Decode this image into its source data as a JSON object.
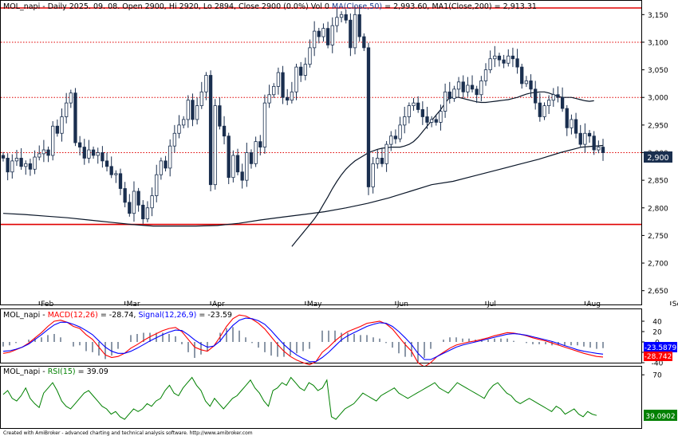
{
  "price_pane": {
    "ticker": "MOL_napi",
    "info": " - Daily 2025. 09. 08. Open 2900, Hi 2920, Lo 2894, Close 2900 (0.0%) Vol 0 ",
    "ma50_label": "MA(Close,50)",
    "ma50_value": " = 2,993.60, ",
    "ma200_label": "MA1(Close,200)",
    "ma200_value": " = 2,913.31",
    "last_price_label": "2,900"
  },
  "macd_pane": {
    "ticker": "MOL_napi - ",
    "macd_label": "MACD(12,26)",
    "macd_value": " = -28.74, ",
    "signal_label": "Signal(12,26,9)",
    "signal_value": " = -23.59",
    "signal_tag": "-23.5879",
    "macd_tag": "-28.742"
  },
  "rsi_pane": {
    "ticker": "MOL_napi - ",
    "rsi_label": "RSI(15)",
    "rsi_value": " = 39.09",
    "rsi_tag": "39.0902"
  },
  "footer": "Created with AmiBroker - advanced charting and technical analysis software. http://www.amibroker.com",
  "colors": {
    "up": "#ffffff",
    "down": "#1a2f4f",
    "ma_line": "#0a1628",
    "macd": "#ff0000",
    "signal": "#0000ff",
    "rsi": "#008000",
    "level": "#e00000",
    "tag_bg": "#1a2f4f"
  },
  "chart_data": [
    {
      "type": "candlestick",
      "ylim": [
        2625,
        3175
      ],
      "yticks": [
        2650,
        2700,
        2750,
        2800,
        2850,
        2900,
        2950,
        3000,
        3050,
        3100,
        3150
      ],
      "ytick_labels": [
        "2,650",
        "2,700",
        "2,750",
        "2,800",
        "2,850",
        "2,900",
        "2,950",
        "3,000",
        "3,050",
        "3,100",
        "3,150"
      ],
      "xtick_labels": [
        "Feb",
        "Mar",
        "Apr",
        "May",
        "Jun",
        "Jul",
        "Aug",
        "Sep"
      ],
      "xtick_index": [
        8,
        27,
        46,
        67,
        87,
        107,
        129,
        148
      ],
      "horizontal_levels_solid": [
        3162,
        2770
      ],
      "horizontal_levels_dotted": [
        3100,
        3000,
        2900
      ],
      "closes": [
        2890,
        2865,
        2885,
        2890,
        2875,
        2880,
        2870,
        2892,
        2898,
        2905,
        2895,
        2948,
        2935,
        2965,
        2990,
        3008,
        2918,
        2910,
        2890,
        2905,
        2895,
        2900,
        2885,
        2875,
        2860,
        2862,
        2835,
        2810,
        2790,
        2830,
        2805,
        2780,
        2800,
        2822,
        2860,
        2885,
        2872,
        2912,
        2935,
        2950,
        2960,
        2995,
        2960,
        2985,
        3010,
        3040,
        2842,
        2985,
        2948,
        2930,
        2855,
        2895,
        2865,
        2850,
        2900,
        2880,
        2920,
        2910,
        2990,
        3005,
        3020,
        3045,
        3000,
        2995,
        3010,
        3055,
        3040,
        3060,
        3090,
        3120,
        3110,
        3125,
        3095,
        3130,
        3145,
        3150,
        3140,
        3090,
        3150,
        3110,
        3090,
        2838,
        2880,
        2890,
        2880,
        2915,
        2930,
        2925,
        2950,
        2965,
        2985,
        2990,
        2978,
        2965,
        2955,
        2960,
        2955,
        2975,
        3010,
        2998,
        3015,
        3028,
        3010,
        3022,
        3015,
        3005,
        3030,
        3050,
        3070,
        3075,
        3068,
        3062,
        3075,
        3070,
        3055,
        3025,
        3030,
        3015,
        2990,
        2965,
        2985,
        2995,
        3005,
        3000,
        2980,
        2945,
        2960,
        2935,
        2915,
        2935,
        2930,
        2905,
        2910,
        2900
      ],
      "ma50": [
        2730,
        2740,
        2750,
        2760,
        2770,
        2780,
        2792,
        2806,
        2820,
        2835,
        2848,
        2860,
        2870,
        2878,
        2885,
        2890,
        2895,
        2900,
        2903,
        2906,
        2908,
        2909,
        2910,
        2910,
        2910,
        2912,
        2915,
        2920,
        2928,
        2938,
        2948,
        2958,
        2968,
        2978,
        2990,
        3000,
        3000,
        3000,
        2998,
        2996,
        2994,
        2992,
        2991,
        2991,
        2992,
        2993,
        2994,
        2995,
        2996,
        2998,
        3000,
        3003,
        3006,
        3008,
        3009,
        3010,
        3010,
        3008,
        3005,
        3002,
        3000,
        3000,
        3000,
        2998,
        2996,
        2994,
        2993,
        2994
      ],
      "ma50_start_index": 64,
      "ma200": [
        2790,
        2788,
        2785,
        2782,
        2778,
        2774,
        2770,
        2767,
        2767,
        2767,
        2768,
        2772,
        2778,
        2783,
        2788,
        2793,
        2800,
        2808,
        2818,
        2830,
        2842,
        2848,
        2858,
        2868,
        2878,
        2888,
        2900,
        2910,
        2913
      ]
    },
    {
      "type": "line",
      "title": "MACD(12,26)",
      "ylim": [
        -40,
        60
      ],
      "yticks": [
        40,
        20,
        0,
        -20,
        -40
      ],
      "series": [
        {
          "name": "MACD(12,26)",
          "values": [
            -22,
            -20,
            -15,
            -10,
            -2,
            8,
            18,
            30,
            40,
            42,
            38,
            30,
            26,
            14,
            5,
            -10,
            -25,
            -30,
            -28,
            -22,
            -12,
            -5,
            3,
            10,
            16,
            22,
            26,
            28,
            20,
            5,
            -10,
            -15,
            -18,
            -8,
            10,
            30,
            45,
            52,
            50,
            44,
            36,
            25,
            10,
            -5,
            -18,
            -28,
            -35,
            -40,
            -44,
            -38,
            -20,
            -10,
            2,
            12,
            20,
            25,
            30,
            36,
            38,
            40,
            35,
            25,
            10,
            -5,
            -18,
            -40,
            -48,
            -40,
            -28,
            -20,
            -12,
            -6,
            -3,
            0,
            2,
            5,
            8,
            12,
            15,
            18,
            17,
            15,
            12,
            8,
            5,
            2,
            -2,
            -6,
            -10,
            -14,
            -18,
            -22,
            -25,
            -28,
            -29
          ]
        },
        {
          "name": "Signal(12,26,9)",
          "values": [
            -18,
            -17,
            -14,
            -10,
            -4,
            5,
            14,
            24,
            33,
            38,
            38,
            34,
            29,
            22,
            14,
            2,
            -10,
            -18,
            -22,
            -22,
            -18,
            -12,
            -5,
            2,
            8,
            14,
            19,
            23,
            22,
            14,
            4,
            -4,
            -10,
            -8,
            2,
            18,
            32,
            42,
            46,
            45,
            41,
            34,
            22,
            8,
            -5,
            -16,
            -25,
            -32,
            -38,
            -38,
            -30,
            -20,
            -8,
            4,
            12,
            18,
            24,
            30,
            34,
            37,
            36,
            30,
            20,
            8,
            -5,
            -22,
            -34,
            -34,
            -28,
            -22,
            -16,
            -10,
            -6,
            -3,
            0,
            3,
            6,
            9,
            12,
            15,
            16,
            15,
            13,
            10,
            7,
            4,
            1,
            -3,
            -7,
            -11,
            -15,
            -18,
            -20,
            -22,
            -23.6
          ]
        }
      ]
    },
    {
      "type": "line",
      "title": "RSI(15)",
      "ylim": [
        30,
        75
      ],
      "yticks": [
        70
      ],
      "series": [
        {
          "name": "RSI(15)",
          "values": [
            55,
            58,
            52,
            50,
            54,
            60,
            52,
            48,
            45,
            56,
            60,
            64,
            58,
            50,
            46,
            44,
            48,
            52,
            56,
            58,
            54,
            50,
            46,
            44,
            40,
            42,
            38,
            36,
            40,
            44,
            42,
            44,
            48,
            46,
            50,
            52,
            58,
            62,
            56,
            54,
            60,
            64,
            68,
            62,
            58,
            50,
            46,
            52,
            48,
            44,
            48,
            52,
            54,
            58,
            62,
            66,
            60,
            56,
            50,
            46,
            58,
            60,
            64,
            62,
            68,
            64,
            60,
            58,
            64,
            62,
            58,
            60,
            66,
            38,
            36,
            40,
            44,
            46,
            48,
            52,
            56,
            54,
            52,
            50,
            54,
            56,
            58,
            60,
            56,
            54,
            52,
            54,
            56,
            58,
            60,
            62,
            64,
            60,
            58,
            56,
            60,
            64,
            62,
            60,
            58,
            56,
            54,
            52,
            58,
            62,
            64,
            60,
            56,
            54,
            50,
            48,
            50,
            52,
            50,
            48,
            46,
            44,
            42,
            46,
            44,
            40,
            42,
            44,
            40,
            38,
            42,
            40,
            39
          ]
        }
      ]
    }
  ]
}
